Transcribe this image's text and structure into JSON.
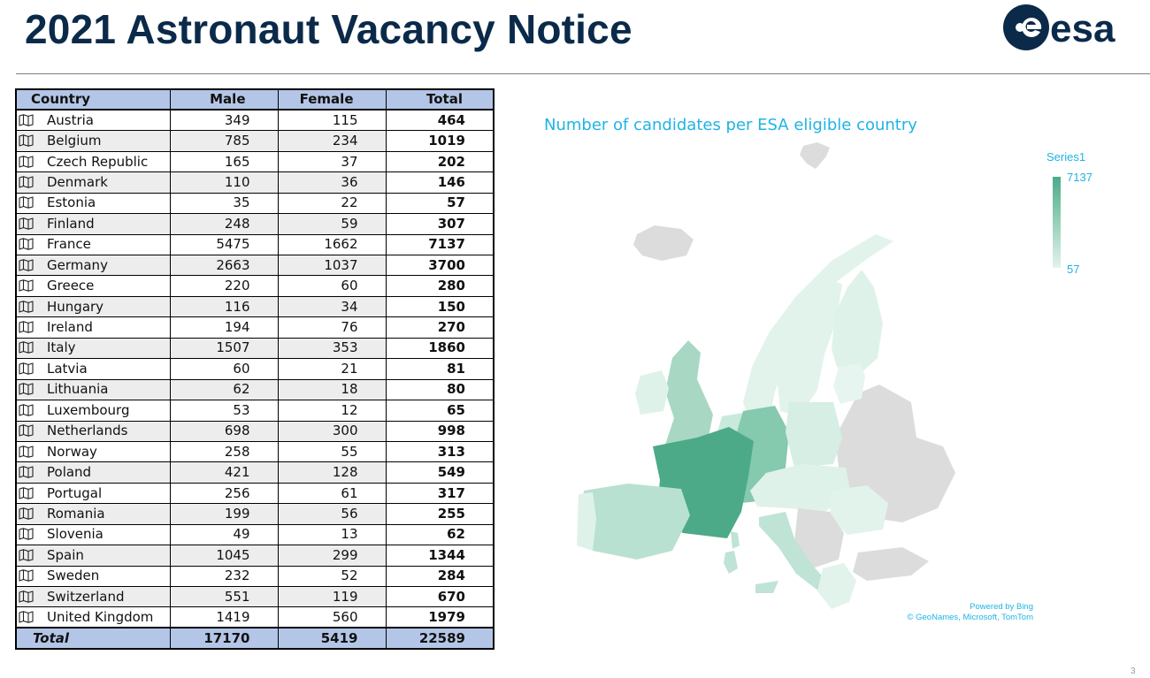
{
  "header": {
    "title": "2021 Astronaut Vacancy Notice",
    "logo_text": "esa",
    "brand_color": "#0b2a4a"
  },
  "table": {
    "columns": [
      "Country",
      "Male",
      "Female",
      "Total"
    ],
    "rows": [
      {
        "country": "Austria",
        "male": "349",
        "female": "115",
        "total": "464"
      },
      {
        "country": "Belgium",
        "male": "785",
        "female": "234",
        "total": "1019"
      },
      {
        "country": "Czech Republic",
        "male": "165",
        "female": "37",
        "total": "202"
      },
      {
        "country": "Denmark",
        "male": "110",
        "female": "36",
        "total": "146"
      },
      {
        "country": "Estonia",
        "male": "35",
        "female": "22",
        "total": "57"
      },
      {
        "country": "Finland",
        "male": "248",
        "female": "59",
        "total": "307"
      },
      {
        "country": "France",
        "male": "5475",
        "female": "1662",
        "total": "7137"
      },
      {
        "country": "Germany",
        "male": "2663",
        "female": "1037",
        "total": "3700"
      },
      {
        "country": "Greece",
        "male": "220",
        "female": "60",
        "total": "280"
      },
      {
        "country": "Hungary",
        "male": "116",
        "female": "34",
        "total": "150"
      },
      {
        "country": "Ireland",
        "male": "194",
        "female": "76",
        "total": "270"
      },
      {
        "country": "Italy",
        "male": "1507",
        "female": "353",
        "total": "1860"
      },
      {
        "country": "Latvia",
        "male": "60",
        "female": "21",
        "total": "81"
      },
      {
        "country": "Lithuania",
        "male": "62",
        "female": "18",
        "total": "80"
      },
      {
        "country": "Luxembourg",
        "male": "53",
        "female": "12",
        "total": "65"
      },
      {
        "country": "Netherlands",
        "male": "698",
        "female": "300",
        "total": "998"
      },
      {
        "country": "Norway",
        "male": "258",
        "female": "55",
        "total": "313"
      },
      {
        "country": "Poland",
        "male": "421",
        "female": "128",
        "total": "549"
      },
      {
        "country": "Portugal",
        "male": "256",
        "female": "61",
        "total": "317"
      },
      {
        "country": "Romania",
        "male": "199",
        "female": "56",
        "total": "255"
      },
      {
        "country": "Slovenia",
        "male": "49",
        "female": "13",
        "total": "62"
      },
      {
        "country": "Spain",
        "male": "1045",
        "female": "299",
        "total": "1344"
      },
      {
        "country": "Sweden",
        "male": "232",
        "female": "52",
        "total": "284"
      },
      {
        "country": "Switzerland",
        "male": "551",
        "female": "119",
        "total": "670"
      },
      {
        "country": "United Kingdom",
        "male": "1419",
        "female": "560",
        "total": "1979"
      }
    ],
    "total_row": {
      "label": "Total",
      "male": "17170",
      "female": "5419",
      "total": "22589"
    },
    "header_color": "#b4c6e7",
    "stripe_color": "#ededed",
    "row_icon": "map-icon"
  },
  "map": {
    "title": "Number of candidates per ESA eligible country",
    "legend_title": "Series1",
    "legend_max": "7137",
    "legend_min": "57",
    "attribution_line1": "Powered by Bing",
    "attribution_line2": "© GeoNames, Microsoft, TomTom",
    "accent_color": "#1fb3e5",
    "scale_high_color": "#4caa88",
    "scale_low_color": "#e2f3ec",
    "non_member_color": "#dcdcdc"
  },
  "page_number": "3",
  "chart_data": {
    "type": "table",
    "title": "Number of candidates per ESA eligible country",
    "legend": {
      "name": "Series1",
      "min": 57,
      "max": 7137,
      "placement": "top-right"
    },
    "categories": [
      "Austria",
      "Belgium",
      "Czech Republic",
      "Denmark",
      "Estonia",
      "Finland",
      "France",
      "Germany",
      "Greece",
      "Hungary",
      "Ireland",
      "Italy",
      "Latvia",
      "Lithuania",
      "Luxembourg",
      "Netherlands",
      "Norway",
      "Poland",
      "Portugal",
      "Romania",
      "Slovenia",
      "Spain",
      "Sweden",
      "Switzerland",
      "United Kingdom"
    ],
    "series": [
      {
        "name": "Male",
        "values": [
          349,
          785,
          165,
          110,
          35,
          248,
          5475,
          2663,
          220,
          116,
          194,
          1507,
          60,
          62,
          53,
          698,
          258,
          421,
          256,
          199,
          49,
          1045,
          232,
          551,
          1419
        ]
      },
      {
        "name": "Female",
        "values": [
          115,
          234,
          37,
          36,
          22,
          59,
          1662,
          1037,
          60,
          34,
          76,
          353,
          21,
          18,
          12,
          300,
          55,
          128,
          61,
          56,
          13,
          299,
          52,
          119,
          560
        ]
      },
      {
        "name": "Total",
        "values": [
          464,
          1019,
          202,
          146,
          57,
          307,
          7137,
          3700,
          280,
          150,
          270,
          1860,
          81,
          80,
          65,
          998,
          313,
          549,
          317,
          255,
          62,
          1344,
          284,
          670,
          1979
        ]
      }
    ],
    "totals": {
      "Male": 17170,
      "Female": 5419,
      "Total": 22589
    }
  }
}
